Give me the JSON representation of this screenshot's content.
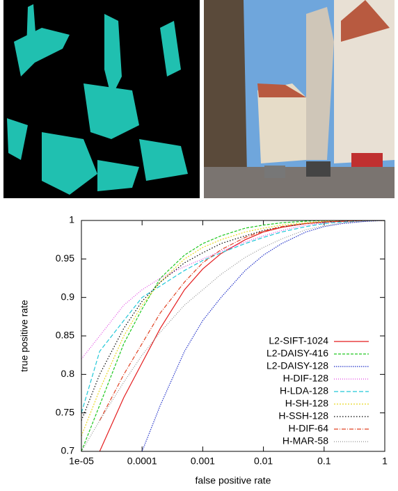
{
  "chart_data": {
    "type": "line",
    "xlabel": "false positive rate",
    "ylabel": "true positive rate",
    "xscale": "log",
    "x": [
      1e-05,
      2e-05,
      5e-05,
      0.0001,
      0.0002,
      0.0005,
      0.001,
      0.002,
      0.005,
      0.01,
      0.02,
      0.05,
      0.1,
      0.2,
      0.5,
      1
    ],
    "xlim": [
      1e-05,
      1
    ],
    "xticks": [
      {
        "value": 1e-05,
        "label": "1e-05"
      },
      0.0001,
      0.001,
      0.01,
      0.1,
      1
    ],
    "ylim": [
      0.7,
      1
    ],
    "yticks": [
      0.7,
      0.75,
      0.8,
      0.85,
      0.9,
      0.95,
      1
    ],
    "legend": "lower right",
    "series": [
      {
        "name": "L2-SIFT-1024",
        "color": "#e41a1c",
        "dash": "none",
        "values": [
          null,
          0.7,
          0.77,
          0.815,
          0.86,
          0.91,
          0.937,
          0.957,
          0.975,
          0.985,
          0.991,
          0.996,
          0.998,
          0.999,
          1,
          1
        ]
      },
      {
        "name": "L2-DAISY-416",
        "color": "#1ec81e",
        "dash": "4 2",
        "values": [
          0.7,
          0.76,
          0.84,
          0.885,
          0.925,
          0.955,
          0.97,
          0.98,
          0.99,
          0.994,
          0.997,
          0.999,
          1,
          1,
          1,
          1
        ]
      },
      {
        "name": "L2-DAISY-128",
        "color": "#2030c8",
        "dash": "1.5 1.5",
        "values": [
          null,
          null,
          null,
          0.7,
          0.76,
          0.83,
          0.87,
          0.9,
          0.935,
          0.955,
          0.97,
          0.985,
          0.992,
          0.996,
          0.999,
          1
        ]
      },
      {
        "name": "H-DIF-128",
        "color": "#e040e0",
        "dash": "1 2",
        "values": [
          0.82,
          0.85,
          0.89,
          0.91,
          0.925,
          0.94,
          0.95,
          0.96,
          0.972,
          0.98,
          0.987,
          0.994,
          0.997,
          0.999,
          1,
          1
        ]
      },
      {
        "name": "H-LDA-128",
        "color": "#20c8d8",
        "dash": "6 3",
        "values": [
          0.75,
          0.83,
          0.87,
          0.9,
          0.915,
          0.935,
          0.948,
          0.958,
          0.97,
          0.978,
          0.985,
          0.992,
          0.996,
          0.998,
          1,
          1
        ]
      },
      {
        "name": "H-SH-128",
        "color": "#e8d820",
        "dash": "2 2",
        "values": [
          0.72,
          0.78,
          0.85,
          0.89,
          0.92,
          0.95,
          0.965,
          0.975,
          0.985,
          0.99,
          0.994,
          0.997,
          0.999,
          1,
          1,
          1
        ]
      },
      {
        "name": "H-SSH-128",
        "color": "#000000",
        "dash": "1.5 2.5",
        "values": [
          0.74,
          0.8,
          0.86,
          0.895,
          0.92,
          0.945,
          0.958,
          0.97,
          0.98,
          0.987,
          0.992,
          0.996,
          0.998,
          0.999,
          1,
          1
        ]
      },
      {
        "name": "H-DIF-64",
        "color": "#e04020",
        "dash": "6 2 1 2",
        "values": [
          null,
          0.74,
          0.8,
          0.84,
          0.88,
          0.92,
          0.945,
          0.962,
          0.978,
          0.986,
          0.992,
          0.996,
          0.998,
          0.999,
          1,
          1
        ]
      },
      {
        "name": "H-MAR-58",
        "color": "#909090",
        "dash": "1 2",
        "values": [
          0.7,
          0.74,
          0.79,
          0.825,
          0.855,
          0.89,
          0.91,
          0.93,
          0.952,
          0.965,
          0.976,
          0.988,
          0.993,
          0.997,
          0.999,
          1
        ]
      }
    ]
  }
}
